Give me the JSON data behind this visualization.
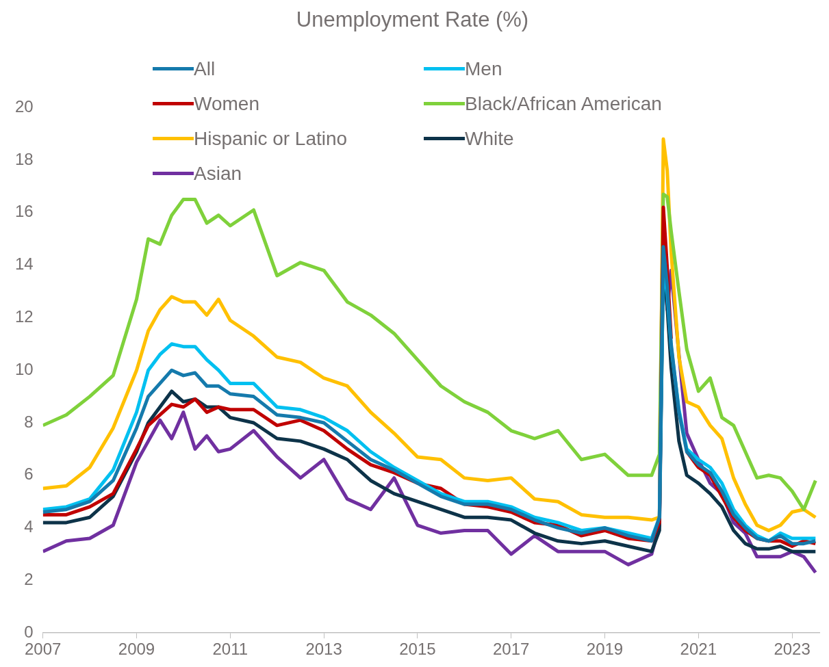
{
  "chart_data": {
    "type": "line",
    "title": "Unemployment Rate (%)",
    "x": [
      "2007-01",
      "2007-07",
      "2008-01",
      "2008-07",
      "2009-01",
      "2009-04",
      "2009-07",
      "2009-10",
      "2010-01",
      "2010-04",
      "2010-07",
      "2010-10",
      "2011-01",
      "2011-07",
      "2012-01",
      "2012-07",
      "2013-01",
      "2013-07",
      "2014-01",
      "2014-07",
      "2015-01",
      "2015-07",
      "2016-01",
      "2016-07",
      "2017-01",
      "2017-07",
      "2018-01",
      "2018-07",
      "2019-01",
      "2019-07",
      "2020-01",
      "2020-03",
      "2020-04",
      "2020-05",
      "2020-06",
      "2020-08",
      "2020-10",
      "2021-01",
      "2021-04",
      "2021-07",
      "2021-10",
      "2022-01",
      "2022-04",
      "2022-07",
      "2022-10",
      "2023-01",
      "2023-04",
      "2023-07"
    ],
    "series": [
      {
        "name": "All",
        "color": "#157aac",
        "values": [
          4.6,
          4.7,
          5.0,
          5.8,
          7.8,
          9.0,
          9.5,
          10.0,
          9.8,
          9.9,
          9.4,
          9.4,
          9.1,
          9.0,
          8.3,
          8.2,
          8.0,
          7.3,
          6.6,
          6.2,
          5.7,
          5.2,
          4.9,
          4.9,
          4.7,
          4.3,
          4.0,
          3.8,
          4.0,
          3.7,
          3.5,
          4.4,
          14.7,
          13.2,
          11.0,
          8.4,
          6.9,
          6.4,
          6.1,
          5.4,
          4.5,
          4.0,
          3.6,
          3.5,
          3.7,
          3.4,
          3.4,
          3.5
        ]
      },
      {
        "name": "Men",
        "color": "#00c0f0",
        "values": [
          4.7,
          4.8,
          5.1,
          6.2,
          8.4,
          10.0,
          10.6,
          11.0,
          10.9,
          10.9,
          10.4,
          10.0,
          9.5,
          9.5,
          8.6,
          8.5,
          8.2,
          7.7,
          6.9,
          6.3,
          5.8,
          5.3,
          5.0,
          5.0,
          4.8,
          4.4,
          4.2,
          3.9,
          4.0,
          3.8,
          3.6,
          4.4,
          14.0,
          12.9,
          10.9,
          8.5,
          7.0,
          6.6,
          6.3,
          5.7,
          4.7,
          4.1,
          3.7,
          3.5,
          3.8,
          3.6,
          3.6,
          3.6
        ]
      },
      {
        "name": "Women",
        "color": "#c00000",
        "values": [
          4.5,
          4.5,
          4.8,
          5.3,
          7.0,
          7.9,
          8.3,
          8.7,
          8.6,
          8.9,
          8.4,
          8.6,
          8.5,
          8.5,
          7.9,
          8.1,
          7.7,
          7.0,
          6.4,
          6.1,
          5.7,
          5.5,
          4.9,
          4.8,
          4.6,
          4.2,
          4.1,
          3.7,
          3.9,
          3.6,
          3.5,
          4.2,
          16.2,
          13.9,
          11.2,
          null,
          6.9,
          6.3,
          6.0,
          5.2,
          4.4,
          3.9,
          3.6,
          3.5,
          3.5,
          3.3,
          3.5,
          3.4
        ]
      },
      {
        "name": "Black/African American",
        "color": "#7fd13b",
        "values": [
          7.9,
          8.3,
          9.0,
          9.8,
          12.7,
          15.0,
          14.8,
          15.9,
          16.5,
          16.5,
          15.6,
          15.9,
          15.5,
          16.1,
          13.6,
          14.1,
          13.8,
          12.6,
          12.1,
          11.4,
          10.4,
          9.4,
          8.8,
          8.4,
          7.7,
          7.4,
          7.7,
          6.6,
          6.8,
          6.0,
          6.0,
          6.8,
          16.7,
          16.6,
          15.3,
          13.0,
          10.8,
          9.2,
          9.7,
          8.2,
          7.9,
          6.9,
          5.9,
          6.0,
          5.9,
          5.4,
          4.7,
          5.8
        ]
      },
      {
        "name": "Hispanic or Latino",
        "color": "#ffc000",
        "values": [
          5.5,
          5.6,
          6.3,
          7.8,
          10.0,
          11.5,
          12.3,
          12.8,
          12.6,
          12.6,
          12.1,
          12.7,
          11.9,
          11.3,
          10.5,
          10.3,
          9.7,
          9.4,
          8.4,
          7.6,
          6.7,
          6.6,
          5.9,
          5.8,
          5.9,
          5.1,
          5.0,
          4.5,
          4.4,
          4.4,
          4.3,
          4.4,
          18.8,
          17.6,
          14.5,
          10.5,
          8.8,
          8.6,
          7.9,
          7.4,
          5.9,
          4.9,
          4.1,
          3.9,
          4.1,
          4.6,
          4.7,
          4.4
        ]
      },
      {
        "name": "White",
        "color": "#0d3349",
        "values": [
          4.2,
          4.2,
          4.4,
          5.2,
          6.9,
          8.0,
          8.6,
          9.2,
          8.8,
          8.9,
          8.6,
          8.6,
          8.2,
          8.0,
          7.4,
          7.3,
          7.0,
          6.6,
          5.8,
          5.3,
          5.0,
          4.7,
          4.4,
          4.4,
          4.3,
          3.8,
          3.5,
          3.4,
          3.5,
          3.3,
          3.1,
          3.9,
          14.1,
          12.4,
          10.1,
          7.3,
          6.0,
          5.7,
          5.3,
          4.8,
          3.9,
          3.4,
          3.2,
          3.2,
          3.3,
          3.1,
          3.1,
          3.1
        ]
      },
      {
        "name": "Asian",
        "color": "#7030a0",
        "values": [
          3.1,
          3.5,
          3.6,
          4.1,
          6.5,
          7.3,
          8.1,
          7.4,
          8.4,
          7.0,
          7.5,
          6.9,
          7.0,
          7.7,
          6.7,
          5.9,
          6.6,
          5.1,
          4.7,
          5.9,
          4.1,
          3.8,
          3.9,
          3.9,
          3.0,
          3.7,
          3.1,
          3.1,
          3.1,
          2.6,
          3.0,
          4.1,
          15.0,
          12.3,
          13.8,
          10.6,
          7.6,
          6.6,
          5.7,
          5.3,
          4.2,
          3.8,
          2.9,
          2.9,
          2.9,
          3.1,
          2.9,
          2.3
        ]
      }
    ],
    "xlim": [
      "2007-01",
      "2023-08"
    ],
    "xticks": [
      "2007",
      "2009",
      "2011",
      "2013",
      "2015",
      "2017",
      "2019",
      "2021",
      "2023"
    ],
    "ylim": [
      0,
      20
    ],
    "yticks": [
      0,
      2,
      4,
      6,
      8,
      10,
      12,
      14,
      16,
      18,
      20
    ],
    "grid": false,
    "legend": "top",
    "marker": "none",
    "line_style": "solid"
  }
}
